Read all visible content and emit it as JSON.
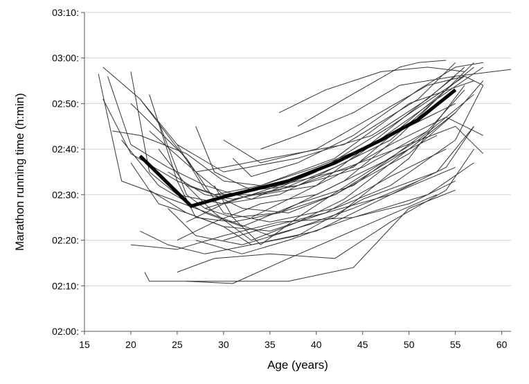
{
  "chart_data": {
    "type": "line",
    "title": "",
    "xlabel": "Age (years)",
    "ylabel": "Marathon running time (h:min)",
    "xlim": [
      15,
      61
    ],
    "ylim": [
      120,
      190
    ],
    "x_ticks": [
      15,
      20,
      25,
      30,
      35,
      40,
      45,
      50,
      55,
      60
    ],
    "x_tick_labels": [
      "15",
      "20",
      "25",
      "30",
      "35",
      "40",
      "45",
      "50",
      "55",
      "60"
    ],
    "y_ticks": [
      120,
      130,
      140,
      150,
      160,
      170,
      180,
      190
    ],
    "y_tick_labels": [
      "02:00:",
      "02:10:",
      "02:20:",
      "02:30:",
      "02:40:",
      "02:50:",
      "03:00:",
      "03:10:"
    ],
    "grid": "horizontal",
    "legend": "none",
    "trend": {
      "color": "#000000",
      "points": [
        [
          21,
          158.5
        ],
        [
          26.5,
          147.5
        ],
        [
          30,
          149.5
        ],
        [
          37,
          153
        ],
        [
          42,
          157
        ],
        [
          47,
          162
        ],
        [
          51,
          166.5
        ],
        [
          55,
          173
        ]
      ]
    },
    "individual_color": "#333333",
    "individual_series": [
      [
        [
          16.5,
          176.5
        ],
        [
          19,
          153
        ],
        [
          23,
          150
        ],
        [
          31,
          144
        ],
        [
          35,
          141
        ],
        [
          42,
          145
        ],
        [
          50,
          158
        ],
        [
          56,
          174
        ]
      ],
      [
        [
          17,
          178
        ],
        [
          21,
          171
        ],
        [
          27,
          155
        ],
        [
          30,
          150
        ],
        [
          36,
          152
        ],
        [
          44,
          156
        ],
        [
          51,
          168
        ],
        [
          57,
          178
        ]
      ],
      [
        [
          17.5,
          176
        ],
        [
          20,
          161
        ],
        [
          24,
          156
        ],
        [
          28,
          152
        ],
        [
          33,
          149
        ],
        [
          40,
          155
        ],
        [
          48,
          165
        ],
        [
          56,
          176
        ]
      ],
      [
        [
          17,
          171
        ],
        [
          20,
          159
        ],
        [
          25,
          153
        ],
        [
          29,
          150
        ],
        [
          34,
          150
        ],
        [
          40,
          152
        ],
        [
          47,
          163
        ],
        [
          55,
          176
        ]
      ],
      [
        [
          18,
          164
        ],
        [
          21,
          163
        ],
        [
          26,
          159
        ],
        [
          30,
          153
        ],
        [
          34,
          152
        ],
        [
          42,
          158
        ],
        [
          50,
          170
        ],
        [
          57,
          175
        ]
      ],
      [
        [
          20,
          177
        ],
        [
          22,
          155
        ],
        [
          25,
          150
        ],
        [
          30,
          148
        ],
        [
          36,
          150
        ],
        [
          44,
          158
        ],
        [
          53,
          171
        ],
        [
          58,
          178
        ]
      ],
      [
        [
          21,
          171
        ],
        [
          25,
          161
        ],
        [
          30,
          155
        ],
        [
          38,
          158
        ],
        [
          46,
          163
        ],
        [
          52,
          171
        ],
        [
          56,
          178
        ]
      ],
      [
        [
          20,
          170
        ],
        [
          26,
          158
        ],
        [
          30,
          146
        ],
        [
          35,
          144
        ],
        [
          42,
          147
        ],
        [
          48,
          152
        ],
        [
          55,
          162
        ],
        [
          58,
          174
        ]
      ],
      [
        [
          19,
          162
        ],
        [
          23,
          152
        ],
        [
          28,
          146
        ],
        [
          32,
          143
        ],
        [
          38,
          148
        ],
        [
          44,
          152
        ],
        [
          52,
          164
        ]
      ],
      [
        [
          22,
          172
        ],
        [
          25,
          153
        ],
        [
          27,
          145
        ],
        [
          31,
          144
        ],
        [
          36,
          146
        ],
        [
          42,
          150
        ],
        [
          50,
          160
        ],
        [
          55,
          168
        ]
      ],
      [
        [
          20,
          157
        ],
        [
          23,
          148
        ],
        [
          26,
          146
        ],
        [
          30,
          143
        ],
        [
          35,
          142
        ],
        [
          41,
          146
        ],
        [
          48,
          154
        ],
        [
          54,
          160
        ]
      ],
      [
        [
          23,
          166
        ],
        [
          26,
          150
        ],
        [
          28,
          147
        ],
        [
          33,
          150
        ],
        [
          38,
          152
        ],
        [
          46,
          158
        ],
        [
          55,
          165
        ],
        [
          58,
          159
        ]
      ],
      [
        [
          21,
          142
        ],
        [
          24,
          139
        ],
        [
          28,
          137
        ],
        [
          33,
          139
        ],
        [
          40,
          142
        ],
        [
          48,
          150
        ],
        [
          55,
          156
        ]
      ],
      [
        [
          20,
          139
        ],
        [
          25,
          138
        ],
        [
          30,
          141
        ],
        [
          36,
          144
        ],
        [
          44,
          145
        ],
        [
          52,
          150
        ],
        [
          57,
          157
        ]
      ],
      [
        [
          21.5,
          133
        ],
        [
          22,
          131
        ],
        [
          30,
          131
        ],
        [
          37,
          131
        ],
        [
          44,
          134
        ],
        [
          50,
          147
        ],
        [
          55,
          151
        ]
      ],
      [
        [
          26,
          131
        ],
        [
          31,
          130.5
        ],
        [
          37,
          136
        ],
        [
          45,
          143
        ],
        [
          53,
          150
        ]
      ],
      [
        [
          25,
          133
        ],
        [
          29,
          136
        ],
        [
          35,
          137
        ],
        [
          42,
          136
        ],
        [
          48,
          144
        ],
        [
          54,
          151
        ],
        [
          57,
          160
        ]
      ],
      [
        [
          24,
          147
        ],
        [
          27,
          141
        ],
        [
          32,
          139
        ],
        [
          37,
          142
        ],
        [
          44,
          147
        ],
        [
          51,
          153
        ]
      ],
      [
        [
          22,
          151
        ],
        [
          26,
          146
        ],
        [
          30,
          143
        ],
        [
          33,
          139
        ],
        [
          38,
          141
        ],
        [
          45,
          149
        ],
        [
          53,
          155
        ],
        [
          57,
          165
        ]
      ],
      [
        [
          23,
          160
        ],
        [
          26,
          152
        ],
        [
          29,
          150
        ],
        [
          34,
          152
        ],
        [
          40,
          156
        ],
        [
          46,
          161
        ],
        [
          53,
          168
        ]
      ],
      [
        [
          25,
          161
        ],
        [
          28,
          151
        ],
        [
          32,
          147
        ],
        [
          37,
          146
        ],
        [
          42,
          150
        ],
        [
          50,
          159
        ],
        [
          55,
          168
        ],
        [
          58,
          175
        ]
      ],
      [
        [
          22,
          164
        ],
        [
          27,
          155
        ],
        [
          30,
          156
        ],
        [
          35,
          158
        ],
        [
          43,
          161
        ],
        [
          51,
          171
        ],
        [
          55,
          179
        ]
      ],
      [
        [
          27,
          165
        ],
        [
          29,
          155
        ],
        [
          33,
          151
        ],
        [
          38,
          152
        ],
        [
          45,
          156
        ],
        [
          52,
          164
        ],
        [
          56,
          173
        ]
      ],
      [
        [
          26,
          152
        ],
        [
          29,
          146
        ],
        [
          33,
          140
        ],
        [
          38,
          144
        ],
        [
          43,
          149
        ],
        [
          50,
          160
        ],
        [
          55,
          168
        ]
      ],
      [
        [
          28,
          147
        ],
        [
          31,
          145
        ],
        [
          36,
          146
        ],
        [
          43,
          153
        ],
        [
          49,
          163
        ],
        [
          54,
          173
        ],
        [
          57,
          179
        ]
      ],
      [
        [
          24,
          155
        ],
        [
          28,
          150
        ],
        [
          31,
          149
        ],
        [
          36,
          151
        ],
        [
          42,
          156
        ],
        [
          48,
          162
        ],
        [
          53,
          171
        ]
      ],
      [
        [
          29,
          152
        ],
        [
          31,
          145
        ],
        [
          34,
          139
        ],
        [
          38,
          145
        ],
        [
          44,
          153
        ],
        [
          51,
          162
        ],
        [
          57,
          172
        ]
      ],
      [
        [
          31,
          158
        ],
        [
          33,
          154
        ],
        [
          38,
          157
        ],
        [
          44,
          163
        ],
        [
          51,
          173
        ],
        [
          55,
          178
        ],
        [
          58,
          179
        ]
      ],
      [
        [
          30,
          162
        ],
        [
          34,
          157
        ],
        [
          40,
          160
        ],
        [
          46,
          167
        ],
        [
          52,
          174
        ],
        [
          56,
          176
        ],
        [
          58,
          174
        ]
      ],
      [
        [
          25,
          140
        ],
        [
          29,
          144
        ],
        [
          34,
          148
        ],
        [
          40,
          150
        ],
        [
          47,
          157
        ],
        [
          53,
          163
        ]
      ],
      [
        [
          27,
          140
        ],
        [
          32,
          137
        ],
        [
          37,
          140
        ],
        [
          44,
          145
        ],
        [
          50,
          148
        ],
        [
          55,
          153
        ]
      ],
      [
        [
          30,
          140
        ],
        [
          35,
          143
        ],
        [
          41,
          146
        ],
        [
          48,
          150
        ],
        [
          54,
          156
        ],
        [
          57,
          165
        ]
      ],
      [
        [
          33,
          145
        ],
        [
          37,
          149
        ],
        [
          42,
          154
        ],
        [
          48,
          161
        ],
        [
          54,
          167
        ],
        [
          58,
          163
        ]
      ],
      [
        [
          26,
          144
        ],
        [
          30,
          148
        ],
        [
          36,
          152
        ],
        [
          42,
          157
        ],
        [
          49,
          164
        ],
        [
          55,
          170
        ]
      ],
      [
        [
          34,
          160
        ],
        [
          38,
          163
        ],
        [
          44,
          168
        ],
        [
          49,
          174
        ],
        [
          55,
          176
        ],
        [
          61,
          177.5
        ]
      ],
      [
        [
          38,
          165
        ],
        [
          43,
          171
        ],
        [
          49,
          178
        ],
        [
          51,
          179
        ],
        [
          54,
          179.5
        ]
      ],
      [
        [
          36,
          168
        ],
        [
          41,
          173
        ],
        [
          47,
          177
        ],
        [
          52,
          178
        ],
        [
          56,
          177
        ]
      ]
    ]
  }
}
